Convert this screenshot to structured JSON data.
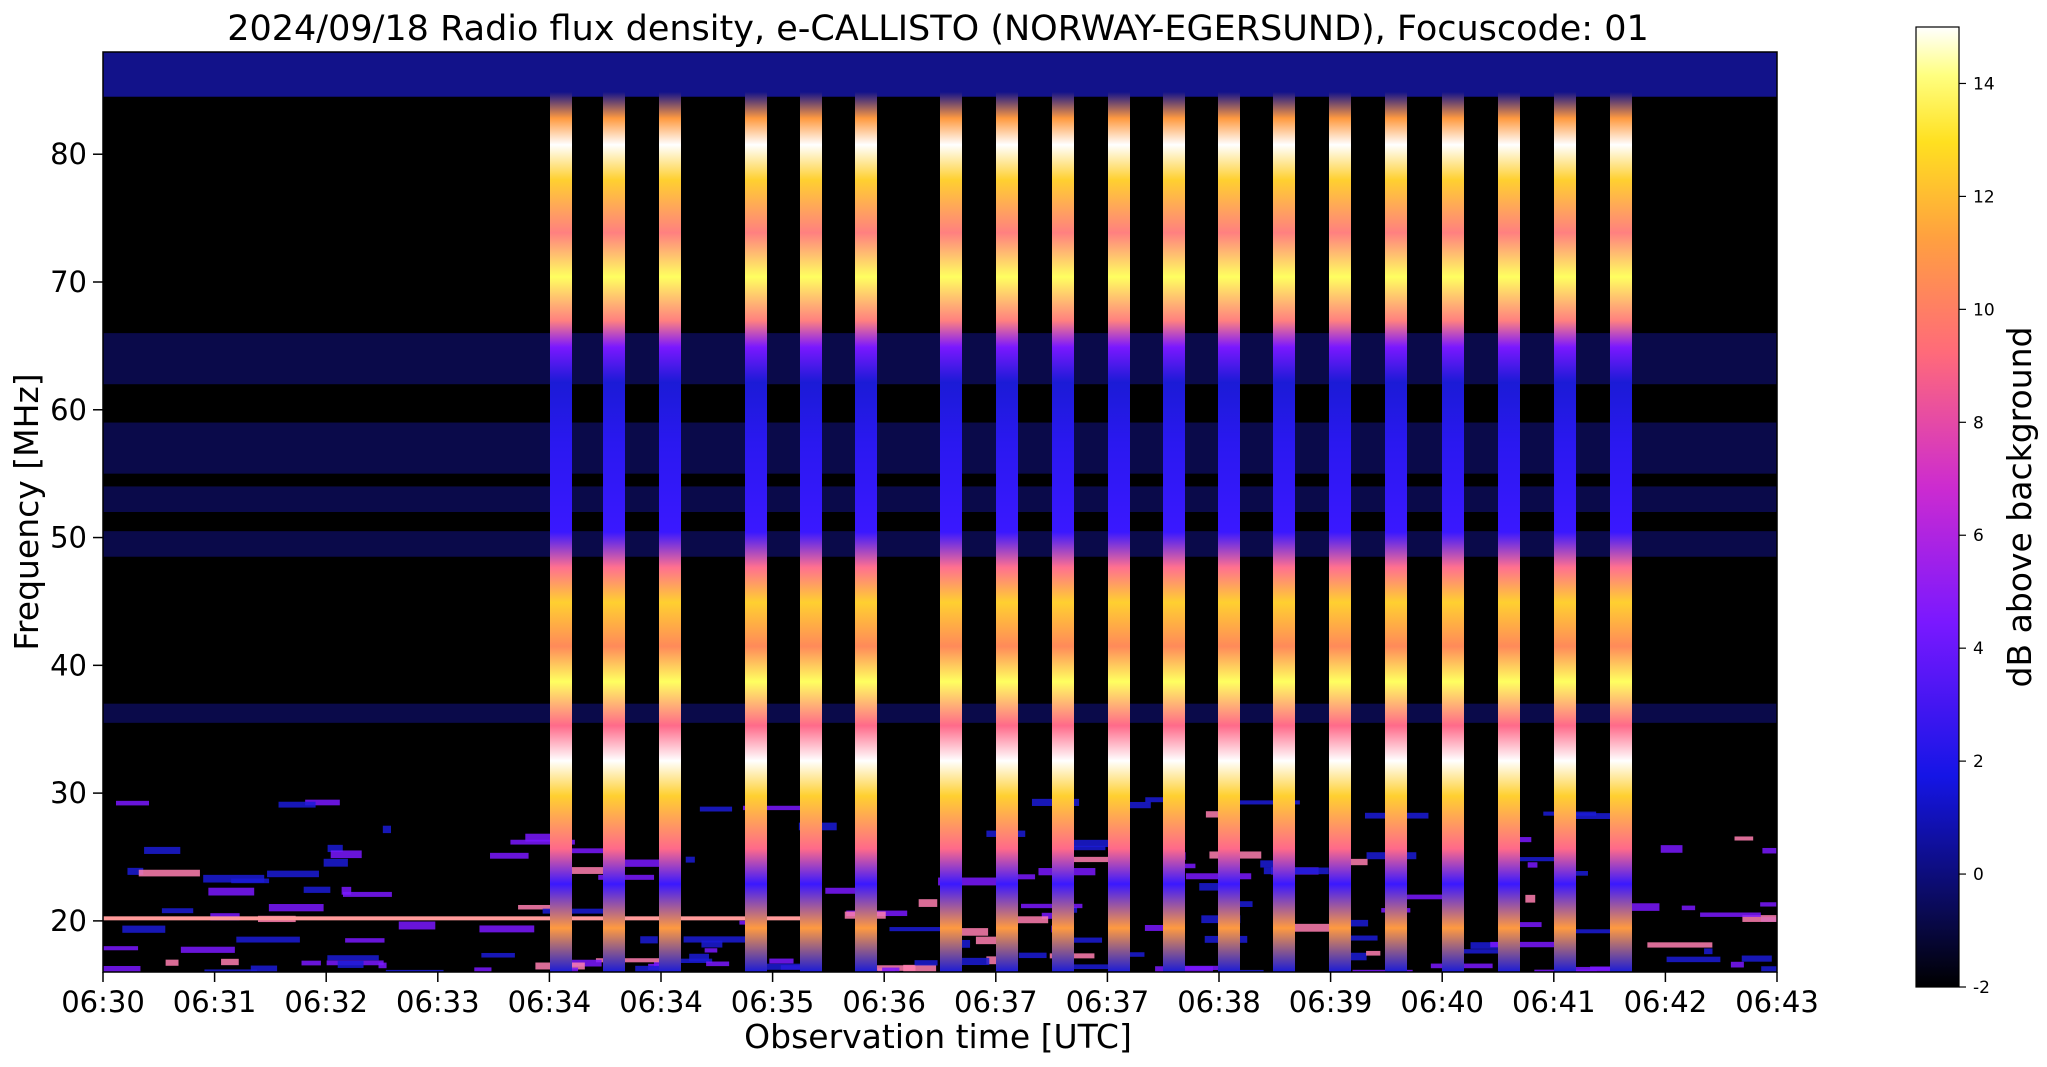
{
  "chart_data": {
    "type": "heatmap",
    "title": "2024/09/18  Radio flux density, e-CALLISTO (NORWAY-EGERSUND), Focuscode: 01",
    "xlabel": "Observation time [UTC]",
    "ylabel": "Frequency [MHz]",
    "colorbar_label": "dB above background",
    "x_tick_labels": [
      "06:30",
      "06:31",
      "06:32",
      "06:33",
      "06:34",
      "06:34",
      "06:35",
      "06:36",
      "06:37",
      "06:37",
      "06:38",
      "06:39",
      "06:40",
      "06:41",
      "06:42",
      "06:43"
    ],
    "y_ticks": [
      20,
      30,
      40,
      50,
      60,
      70,
      80
    ],
    "ylim": [
      16,
      88
    ],
    "colorbar_ticks": [
      -2,
      0,
      2,
      4,
      6,
      8,
      10,
      12,
      14
    ],
    "colorbar_range": [
      -2,
      15
    ],
    "colormap": "gnuplot2",
    "grid": false,
    "burst_columns_utc": [
      "06:34",
      "06:34",
      "06:34",
      "06:35",
      "06:35",
      "06:35",
      "06:36",
      "06:36",
      "06:37",
      "06:37",
      "06:38",
      "06:38",
      "06:39",
      "06:39",
      "06:40",
      "06:40",
      "06:41",
      "06:41",
      "06:42"
    ],
    "burst_peak_db": 15,
    "background_db": -2,
    "interference_bands_mhz": [
      [
        84.5,
        88
      ],
      [
        62,
        66
      ],
      [
        55,
        59
      ],
      [
        52,
        54
      ],
      [
        48.5,
        50.5
      ],
      [
        35.5,
        37
      ]
    ],
    "low_frequency_noise_mhz": [
      16,
      30
    ]
  },
  "colors": {
    "background": "#000000",
    "band_faint": "#0a0a4a",
    "low": "#1b1bd6",
    "mid": "#8b1cff",
    "high": "#ff8a5a",
    "peak": "#ffff40",
    "max": "#ffffff"
  }
}
